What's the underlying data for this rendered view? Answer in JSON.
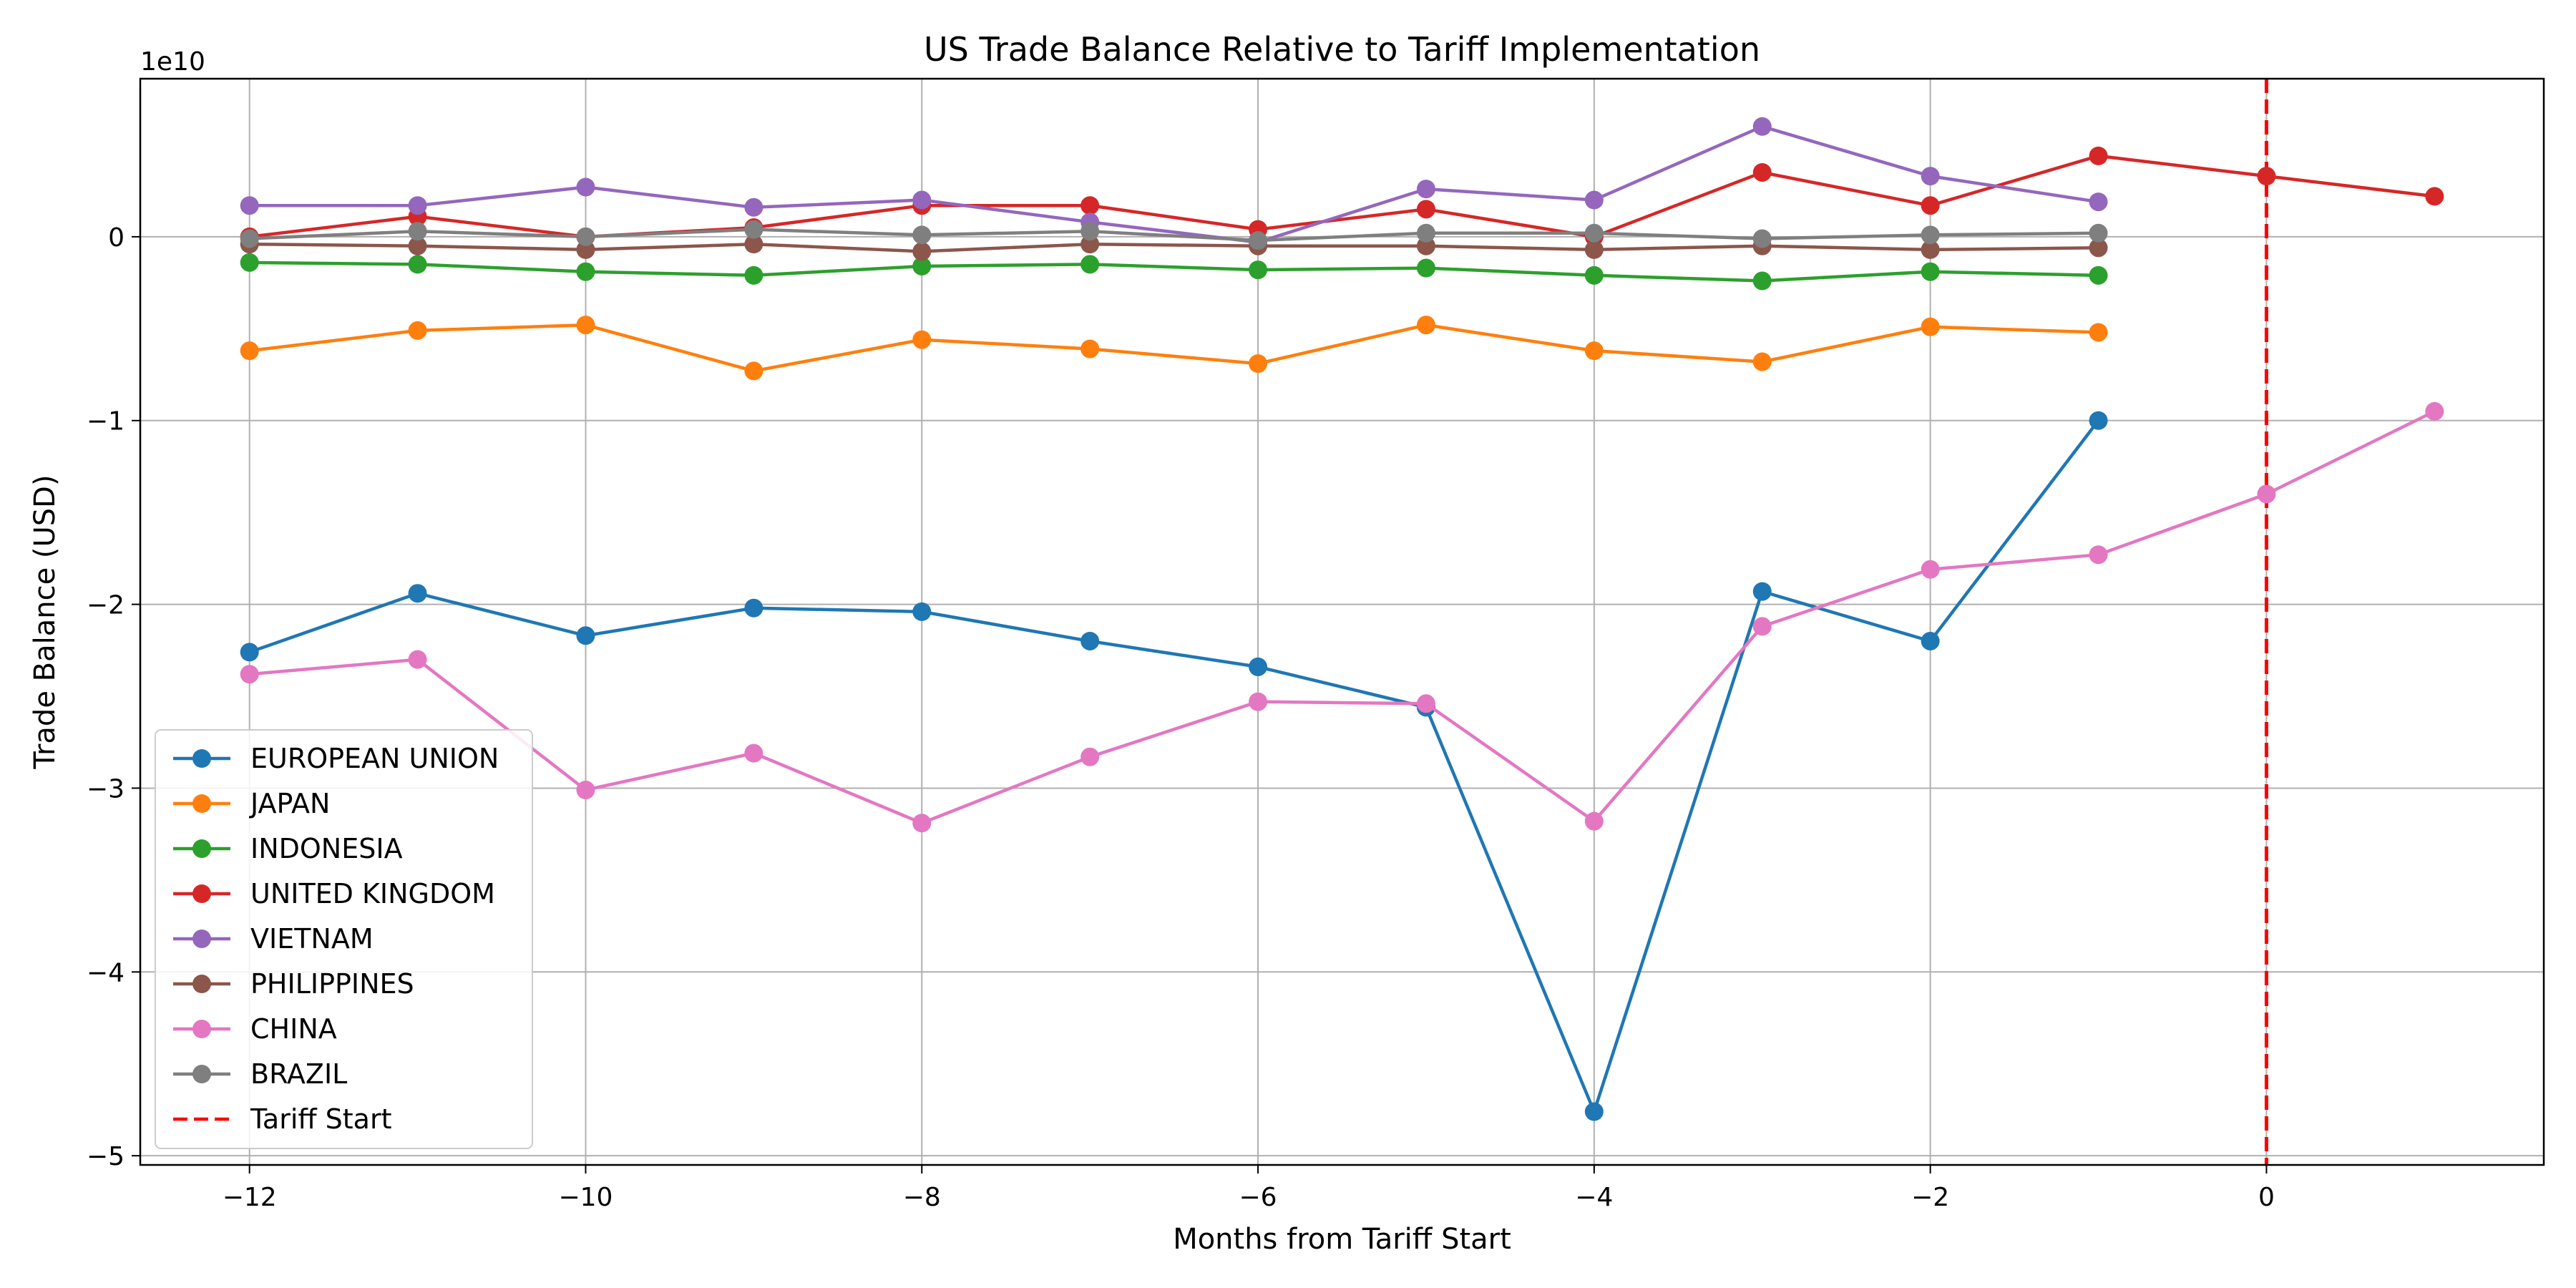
{
  "chart_data": {
    "type": "line",
    "title": "US Trade Balance Relative to Tariff Implementation",
    "xlabel": "Months from Tariff Start",
    "ylabel": "Trade Balance (USD)",
    "y_offset_label": "1e10",
    "xlim": [
      -12.65,
      1.65
    ],
    "ylim": [
      -5.05,
      0.86
    ],
    "x_ticks": [
      -12,
      -10,
      -8,
      -6,
      -4,
      -2,
      0
    ],
    "x_tick_labels": [
      "−12",
      "−10",
      "−8",
      "−6",
      "−4",
      "−2",
      "0"
    ],
    "y_ticks": [
      -5,
      -4,
      -3,
      -2,
      -1,
      0
    ],
    "y_tick_labels": [
      "−5",
      "−4",
      "−3",
      "−2",
      "−1",
      "0"
    ],
    "grid": true,
    "legend_position": "lower-left",
    "series": [
      {
        "name": "EUROPEAN UNION",
        "color": "#1f77b4",
        "x": [
          -12,
          -11,
          -10,
          -9,
          -8,
          -7,
          -6,
          -5,
          -4,
          -3,
          -2,
          -1
        ],
        "y": [
          -2.26,
          -1.94,
          -2.17,
          -2.02,
          -2.04,
          -2.2,
          -2.34,
          -2.56,
          -4.76,
          -1.93,
          -2.2,
          -1.0
        ]
      },
      {
        "name": "JAPAN",
        "color": "#ff7f0e",
        "x": [
          -12,
          -11,
          -10,
          -9,
          -8,
          -7,
          -6,
          -5,
          -4,
          -3,
          -2,
          -1
        ],
        "y": [
          -0.62,
          -0.51,
          -0.48,
          -0.73,
          -0.56,
          -0.61,
          -0.69,
          -0.48,
          -0.62,
          -0.68,
          -0.49,
          -0.52
        ]
      },
      {
        "name": "INDONESIA",
        "color": "#2ca02c",
        "x": [
          -12,
          -11,
          -10,
          -9,
          -8,
          -7,
          -6,
          -5,
          -4,
          -3,
          -2,
          -1
        ],
        "y": [
          -0.14,
          -0.15,
          -0.19,
          -0.21,
          -0.16,
          -0.15,
          -0.18,
          -0.17,
          -0.21,
          -0.24,
          -0.19,
          -0.21
        ]
      },
      {
        "name": "UNITED KINGDOM",
        "color": "#d62728",
        "x": [
          -12,
          -11,
          -10,
          -9,
          -8,
          -7,
          -6,
          -5,
          -4,
          -3,
          -2,
          -1,
          0,
          1
        ],
        "y": [
          0.0,
          0.11,
          0.0,
          0.05,
          0.17,
          0.17,
          0.04,
          0.15,
          0.0,
          0.35,
          0.17,
          0.44,
          0.33,
          0.22
        ]
      },
      {
        "name": "VIETNAM",
        "color": "#9467bd",
        "x": [
          -12,
          -11,
          -10,
          -9,
          -8,
          -7,
          -6,
          -5,
          -4,
          -3,
          -2,
          -1
        ],
        "y": [
          0.17,
          0.17,
          0.27,
          0.16,
          0.2,
          0.08,
          -0.03,
          0.26,
          0.2,
          0.6,
          0.33,
          0.19
        ]
      },
      {
        "name": "PHILIPPINES",
        "color": "#8c564b",
        "x": [
          -12,
          -11,
          -10,
          -9,
          -8,
          -7,
          -6,
          -5,
          -4,
          -3,
          -2,
          -1
        ],
        "y": [
          -0.04,
          -0.05,
          -0.07,
          -0.04,
          -0.08,
          -0.04,
          -0.05,
          -0.05,
          -0.07,
          -0.05,
          -0.07,
          -0.06
        ]
      },
      {
        "name": "CHINA",
        "color": "#e377c2",
        "x": [
          -12,
          -11,
          -10,
          -9,
          -8,
          -7,
          -6,
          -5,
          -4,
          -3,
          -2,
          -1,
          0,
          1
        ],
        "y": [
          -2.38,
          -2.3,
          -3.01,
          -2.81,
          -3.19,
          -2.83,
          -2.53,
          -2.54,
          -3.18,
          -2.12,
          -1.81,
          -1.73,
          -1.4,
          -0.95
        ]
      },
      {
        "name": "BRAZIL",
        "color": "#7f7f7f",
        "x": [
          -12,
          -11,
          -10,
          -9,
          -8,
          -7,
          -6,
          -5,
          -4,
          -3,
          -2,
          -1
        ],
        "y": [
          -0.01,
          0.03,
          0.0,
          0.04,
          0.01,
          0.03,
          -0.02,
          0.02,
          0.02,
          -0.01,
          0.01,
          0.02
        ]
      }
    ],
    "reference_line": {
      "name": "Tariff Start",
      "x": 0,
      "color": "#ff0000",
      "style": "dashed"
    }
  }
}
